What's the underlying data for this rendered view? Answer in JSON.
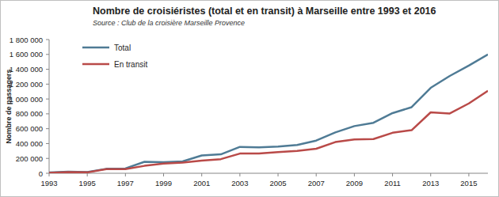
{
  "chart_data": {
    "type": "line",
    "title": "Nombre de croisiéristes (total et en transit) à Marseille entre 1993 et 2016",
    "subtitle": "Source : Club de la croisière Marseille Provence",
    "y_label": "Nombre de passagers",
    "x": [
      1993,
      1994,
      1995,
      1996,
      1997,
      1998,
      1999,
      2000,
      2001,
      2002,
      2003,
      2004,
      2005,
      2006,
      2007,
      2008,
      2009,
      2010,
      2011,
      2012,
      2013,
      2014,
      2015,
      2016
    ],
    "series": [
      {
        "name": "Total",
        "color": "#4f7b95",
        "values": [
          10000,
          20000,
          15000,
          60000,
          65000,
          155000,
          150000,
          160000,
          240000,
          255000,
          355000,
          350000,
          360000,
          380000,
          440000,
          550000,
          635000,
          680000,
          810000,
          890000,
          1150000,
          1310000,
          1450000,
          1600000
        ]
      },
      {
        "name": "En transit",
        "color": "#b94a48",
        "values": [
          5000,
          15000,
          12000,
          55000,
          55000,
          100000,
          130000,
          145000,
          170000,
          190000,
          265000,
          265000,
          285000,
          300000,
          330000,
          420000,
          455000,
          460000,
          545000,
          580000,
          820000,
          805000,
          940000,
          1110000
        ]
      }
    ],
    "xlim": [
      1993,
      2016
    ],
    "xticks": [
      1993,
      1995,
      1997,
      1999,
      2001,
      2003,
      2005,
      2007,
      2009,
      2011,
      2013,
      2015
    ],
    "ylim": [
      0,
      1800000
    ],
    "yticks": [
      {
        "value": 0,
        "label": "0"
      },
      {
        "value": 200000,
        "label": "200 000"
      },
      {
        "value": 400000,
        "label": "400 000"
      },
      {
        "value": 600000,
        "label": "600 000"
      },
      {
        "value": 800000,
        "label": "800 000"
      },
      {
        "value": 1000000,
        "label": "1 000 000"
      },
      {
        "value": 1200000,
        "label": "1 200 000"
      },
      {
        "value": 1400000,
        "label": "1 400 000"
      },
      {
        "value": 1600000,
        "label": "1 600 000"
      },
      {
        "value": 1800000,
        "label": "1 800 000"
      }
    ],
    "grid": false,
    "legend": "upper left"
  }
}
